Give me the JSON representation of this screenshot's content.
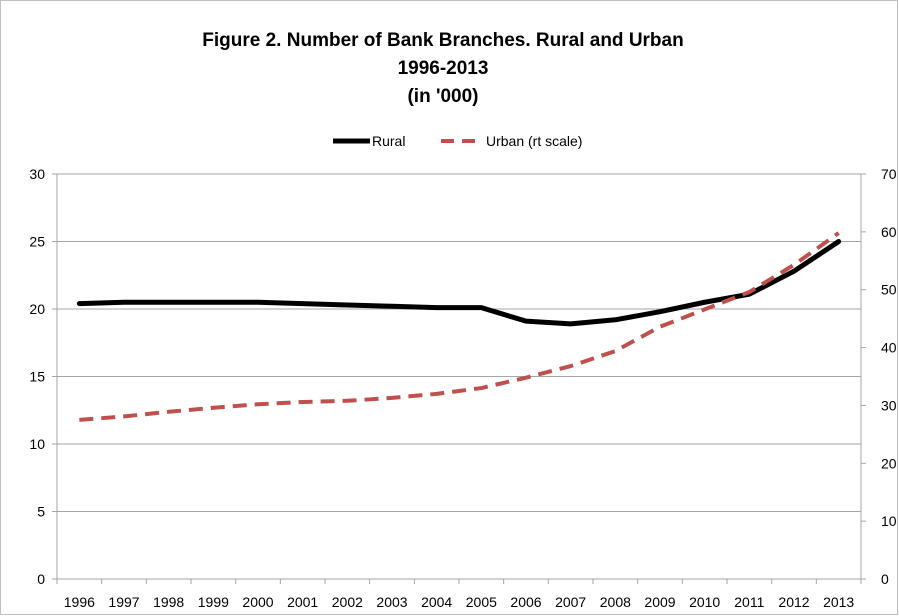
{
  "chart_data": {
    "type": "line",
    "title": [
      "Figure 2. Number of Bank Branches. Rural and Urban",
      "1996-2013",
      "(in '000)"
    ],
    "categories": [
      "1996",
      "1997",
      "1998",
      "1999",
      "2000",
      "2001",
      "2002",
      "2003",
      "2004",
      "2005",
      "2006",
      "2007",
      "2008",
      "2009",
      "2010",
      "2011",
      "2012",
      "2013"
    ],
    "y_left": {
      "min": 0,
      "max": 30,
      "ticks": [
        "0",
        "5",
        "10",
        "15",
        "20",
        "25",
        "30"
      ]
    },
    "y_right": {
      "min": 0,
      "max": 70,
      "ticks": [
        "0",
        "10",
        "20",
        "30",
        "40",
        "50",
        "60",
        "70"
      ]
    },
    "grid": true,
    "legend_position": "top",
    "series": [
      {
        "name": "Rural",
        "axis": "left",
        "style": "solid",
        "color": "#000000",
        "values": [
          20.4,
          20.5,
          20.5,
          20.5,
          20.5,
          20.4,
          20.3,
          20.2,
          20.1,
          20.1,
          19.1,
          18.9,
          19.2,
          19.8,
          20.5,
          21.1,
          22.8,
          25.0
        ]
      },
      {
        "name": "Urban (rt scale)",
        "axis": "right",
        "style": "dashed",
        "color": "#c0504d",
        "values": [
          27.5,
          28.1,
          28.9,
          29.6,
          30.2,
          30.6,
          30.8,
          31.3,
          32.0,
          33.0,
          34.8,
          36.8,
          39.4,
          43.6,
          46.6,
          49.6,
          54.3,
          59.8
        ]
      }
    ]
  }
}
